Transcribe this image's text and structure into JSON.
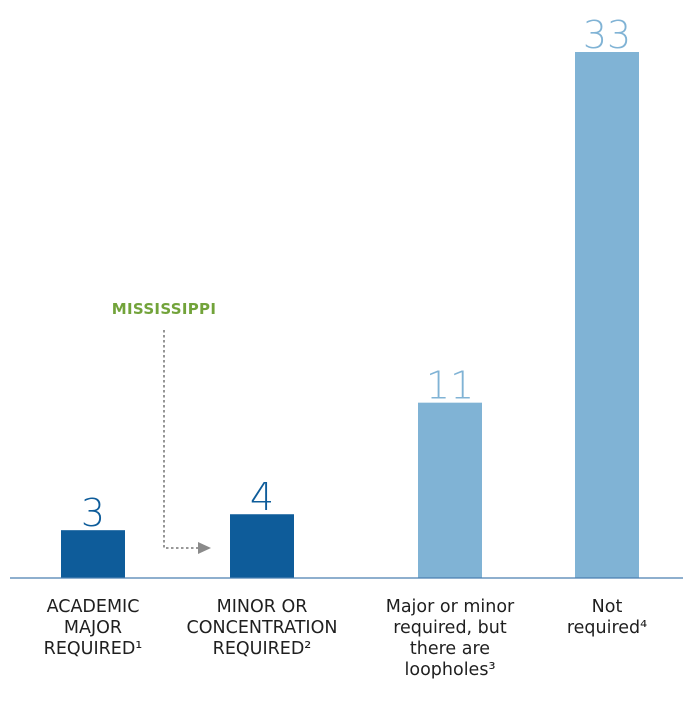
{
  "chart_data": {
    "type": "bar",
    "categories": [
      [
        "ACADEMIC",
        "MAJOR",
        "REQUIRED¹"
      ],
      [
        "MINOR OR",
        "CONCENTRATION",
        "REQUIRED²"
      ],
      [
        "Major or minor",
        "required, but",
        "there are",
        "loopholes³"
      ],
      [
        "Not",
        "required⁴"
      ]
    ],
    "values": [
      3,
      4,
      11,
      33
    ],
    "value_labels": [
      "3",
      "4",
      "11",
      "33"
    ],
    "bar_colors": [
      "#0e5c9a",
      "#0e5c9a",
      "#80b3d5",
      "#80b3d5"
    ],
    "label_colors": [
      "#0e5c9a",
      "#0e5c9a",
      "#80b3d5",
      "#80b3d5"
    ],
    "ylim": [
      0,
      33
    ],
    "grid": false,
    "legend": "none",
    "annotation": {
      "text": "MISSISSIPPI",
      "color": "#72a33a",
      "arrow_color": "#8a8a8a",
      "points_to_category": 1
    }
  }
}
